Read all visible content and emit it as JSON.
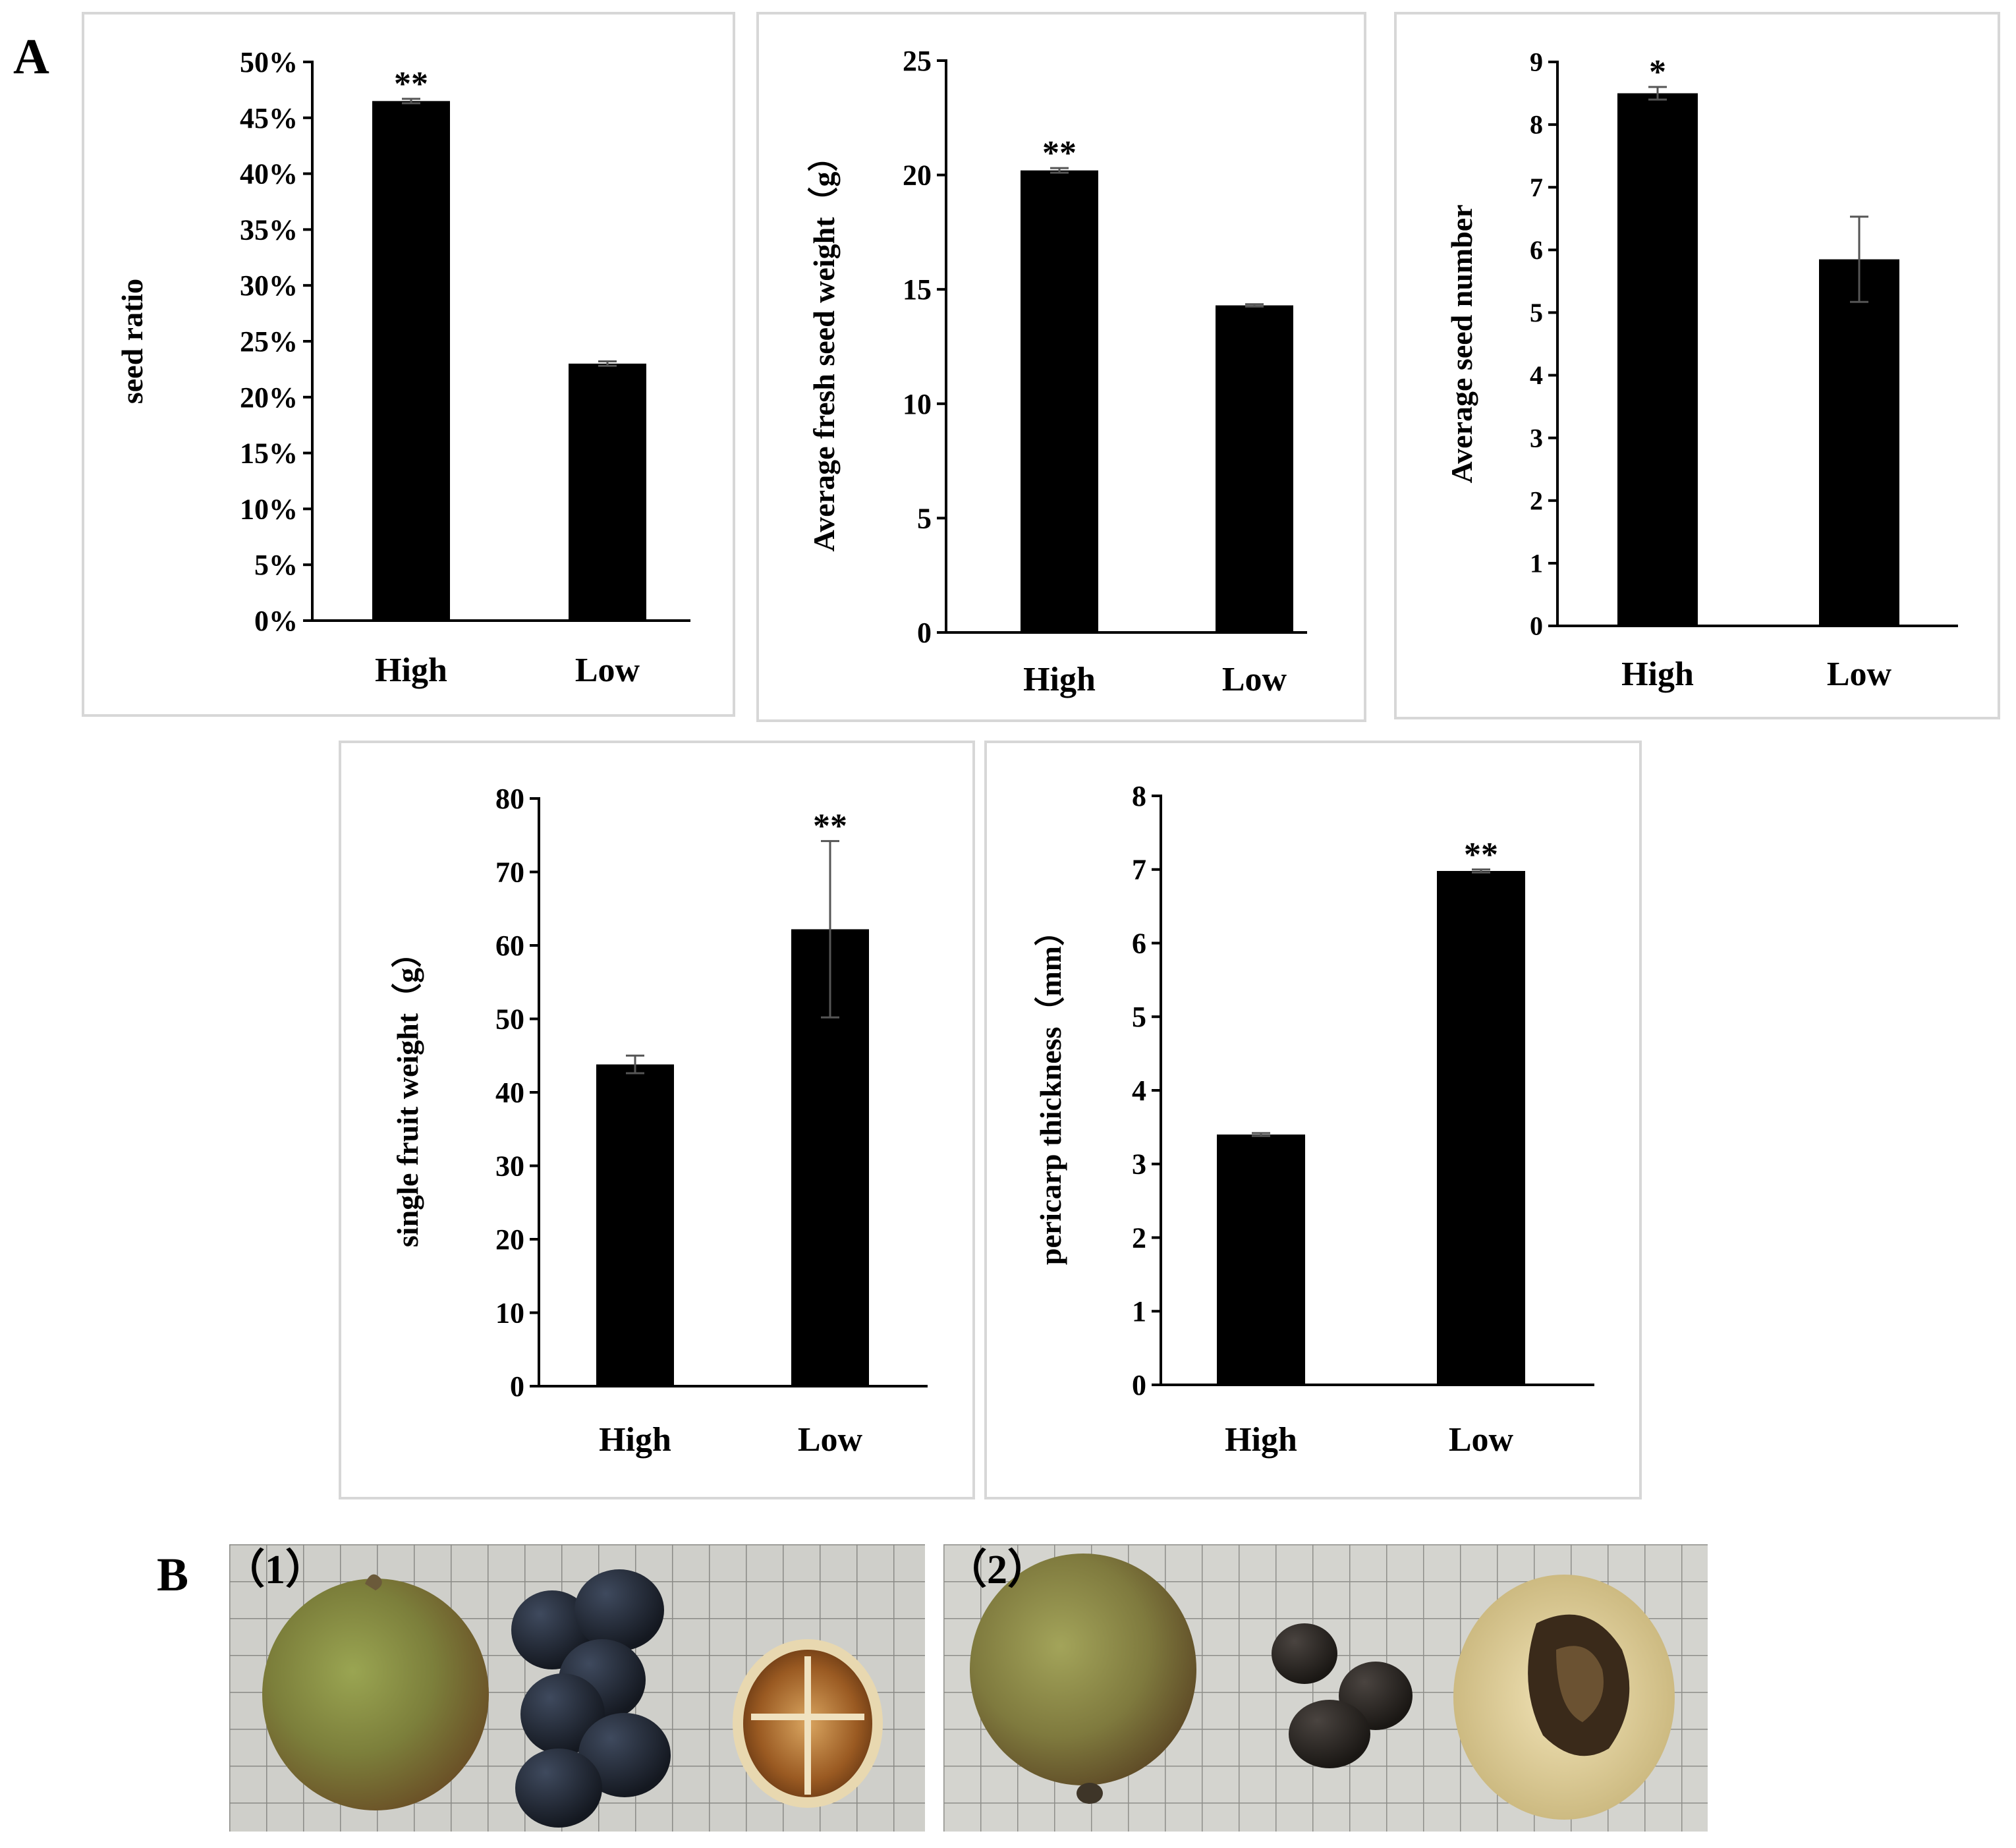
{
  "panel_labels": {
    "a": "A",
    "b": "B"
  },
  "chart_data": [
    {
      "type": "bar",
      "title": "",
      "xlabel": "",
      "ylabel": "seed ratio",
      "categories": [
        "High",
        "Low"
      ],
      "values": [
        46.5,
        23.0
      ],
      "errors": [
        0.2,
        0.2
      ],
      "significance": [
        "**",
        ""
      ],
      "ylim": [
        0,
        50
      ],
      "yticks": [
        0,
        5,
        10,
        15,
        20,
        25,
        30,
        35,
        40,
        45,
        50
      ],
      "ytick_labels": [
        "0%",
        "5%",
        "10%",
        "15%",
        "20%",
        "25%",
        "30%",
        "35%",
        "40%",
        "45%",
        "50%"
      ],
      "bar_color": "#000000"
    },
    {
      "type": "bar",
      "title": "",
      "xlabel": "",
      "ylabel": "Average fresh seed weight（g）",
      "categories": [
        "High",
        "Low"
      ],
      "values": [
        20.2,
        14.3
      ],
      "errors": [
        0.1,
        0.05
      ],
      "significance": [
        "**",
        ""
      ],
      "ylim": [
        0,
        25
      ],
      "yticks": [
        0,
        5,
        10,
        15,
        20,
        25
      ],
      "ytick_labels": [
        "0",
        "5",
        "10",
        "15",
        "20",
        "25"
      ],
      "bar_color": "#000000"
    },
    {
      "type": "bar",
      "title": "",
      "xlabel": "",
      "ylabel": "Average seed number",
      "categories": [
        "High",
        "Low"
      ],
      "values": [
        8.5,
        5.85
      ],
      "errors": [
        0.1,
        0.68
      ],
      "significance": [
        "*",
        ""
      ],
      "ylim": [
        0,
        9
      ],
      "yticks": [
        0,
        1,
        2,
        3,
        4,
        5,
        6,
        7,
        8,
        9
      ],
      "ytick_labels": [
        "0",
        "1",
        "2",
        "3",
        "4",
        "5",
        "6",
        "7",
        "8",
        "9"
      ],
      "bar_color": "#000000"
    },
    {
      "type": "bar",
      "title": "",
      "xlabel": "",
      "ylabel": "single fruit weight（g）",
      "categories": [
        "High",
        "Low"
      ],
      "values": [
        43.8,
        62.2
      ],
      "errors": [
        1.2,
        12.0
      ],
      "significance": [
        "",
        "**"
      ],
      "ylim": [
        0,
        80
      ],
      "yticks": [
        0,
        10,
        20,
        30,
        40,
        50,
        60,
        70,
        80
      ],
      "ytick_labels": [
        "0",
        "10",
        "20",
        "30",
        "40",
        "50",
        "60",
        "70",
        "80"
      ],
      "bar_color": "#000000"
    },
    {
      "type": "bar",
      "title": "",
      "xlabel": "",
      "ylabel": "pericarp thickness（mm）",
      "categories": [
        "High",
        "Low"
      ],
      "values": [
        3.4,
        6.98
      ],
      "errors": [
        0.02,
        0.02
      ],
      "significance": [
        "",
        "**"
      ],
      "ylim": [
        0,
        8
      ],
      "yticks": [
        0,
        1,
        2,
        3,
        4,
        5,
        6,
        7,
        8
      ],
      "ytick_labels": [
        "0",
        "1",
        "2",
        "3",
        "4",
        "5",
        "6",
        "7",
        "8"
      ],
      "bar_color": "#000000"
    }
  ],
  "photos": [
    {
      "label": "（1）",
      "background": "#cfcfca",
      "grid_color": "#8a8a86"
    },
    {
      "label": "（2）",
      "background": "#d4d4cf",
      "grid_color": "#8e8e8a"
    }
  ]
}
